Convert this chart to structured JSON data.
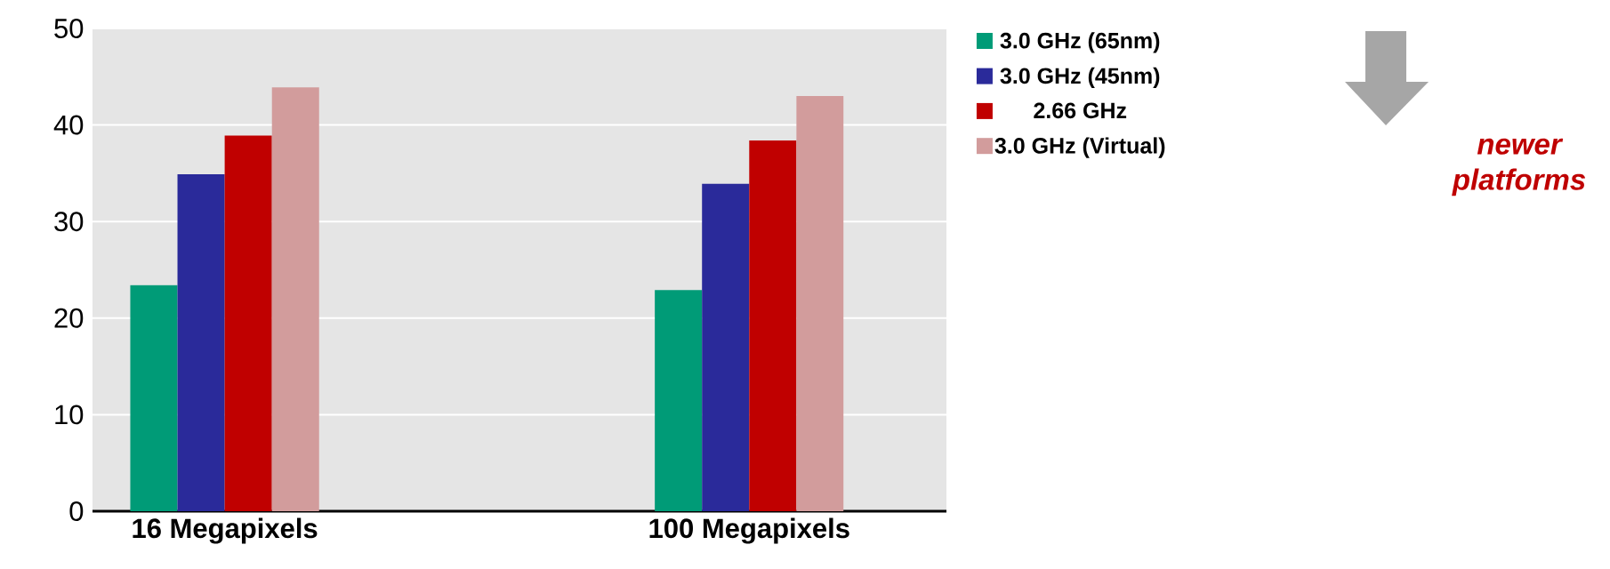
{
  "chart_data": {
    "type": "bar",
    "categories": [
      "16 Megapixels",
      "100 Megapixels"
    ],
    "series": [
      {
        "name": "3.0 GHz (65nm)",
        "color": "#009b77",
        "values": [
          23.4,
          22.9
        ]
      },
      {
        "name": "3.0 GHz (45nm)",
        "color": "#2a2a9a",
        "values": [
          34.9,
          33.9
        ]
      },
      {
        "name": "2.66 GHz",
        "color": "#c00000",
        "values": [
          38.9,
          38.4
        ]
      },
      {
        "name": "3.0 GHz (Virtual)",
        "color": "#d29c9c",
        "values": [
          43.9,
          43.0
        ]
      }
    ],
    "ylim": [
      0,
      50
    ],
    "yticks": [
      0,
      10,
      20,
      30,
      40,
      50
    ],
    "grid": "y",
    "legend": "top right",
    "annotations": [
      "newer platforms"
    ]
  }
}
